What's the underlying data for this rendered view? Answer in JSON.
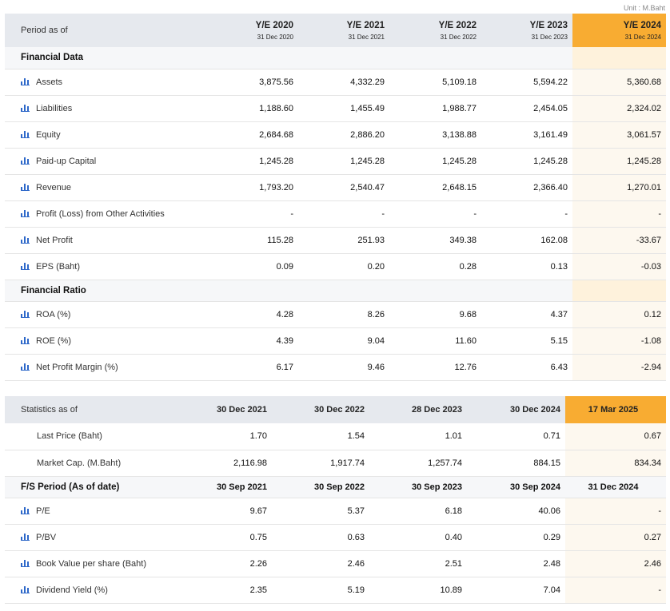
{
  "unit": "Unit : M.Baht",
  "table1": {
    "header_label": "Period as of",
    "columns": [
      {
        "year": "Y/E 2020",
        "date": "31 Dec 2020"
      },
      {
        "year": "Y/E 2021",
        "date": "31 Dec 2021"
      },
      {
        "year": "Y/E 2022",
        "date": "31 Dec 2022"
      },
      {
        "year": "Y/E 2023",
        "date": "31 Dec 2023"
      },
      {
        "year": "Y/E 2024",
        "date": "31 Dec 2024"
      }
    ],
    "sections": [
      {
        "title": "Financial Data",
        "rows": [
          {
            "label": "Assets",
            "values": [
              "3,875.56",
              "4,332.29",
              "5,109.18",
              "5,594.22",
              "5,360.68"
            ]
          },
          {
            "label": "Liabilities",
            "values": [
              "1,188.60",
              "1,455.49",
              "1,988.77",
              "2,454.05",
              "2,324.02"
            ]
          },
          {
            "label": "Equity",
            "values": [
              "2,684.68",
              "2,886.20",
              "3,138.88",
              "3,161.49",
              "3,061.57"
            ]
          },
          {
            "label": "Paid-up Capital",
            "values": [
              "1,245.28",
              "1,245.28",
              "1,245.28",
              "1,245.28",
              "1,245.28"
            ]
          },
          {
            "label": "Revenue",
            "values": [
              "1,793.20",
              "2,540.47",
              "2,648.15",
              "2,366.40",
              "1,270.01"
            ]
          },
          {
            "label": "Profit (Loss) from Other Activities",
            "values": [
              "-",
              "-",
              "-",
              "-",
              "-"
            ]
          },
          {
            "label": "Net Profit",
            "values": [
              "115.28",
              "251.93",
              "349.38",
              "162.08",
              "-33.67"
            ]
          },
          {
            "label": "EPS (Baht)",
            "values": [
              "0.09",
              "0.20",
              "0.28",
              "0.13",
              "-0.03"
            ]
          }
        ]
      },
      {
        "title": "Financial Ratio",
        "rows": [
          {
            "label": "ROA (%)",
            "values": [
              "4.28",
              "8.26",
              "9.68",
              "4.37",
              "0.12"
            ]
          },
          {
            "label": "ROE (%)",
            "values": [
              "4.39",
              "9.04",
              "11.60",
              "5.15",
              "-1.08"
            ]
          },
          {
            "label": "Net Profit Margin (%)",
            "values": [
              "6.17",
              "9.46",
              "12.76",
              "6.43",
              "-2.94"
            ]
          }
        ]
      }
    ]
  },
  "table2": {
    "header_label": "Statistics as of",
    "columns": [
      "30 Dec 2021",
      "30 Dec 2022",
      "28 Dec 2023",
      "30 Dec 2024",
      "17 Mar 2025"
    ],
    "price_rows": [
      {
        "label": "Last Price (Baht)",
        "values": [
          "1.70",
          "1.54",
          "1.01",
          "0.71",
          "0.67"
        ]
      },
      {
        "label": "Market Cap. (M.Baht)",
        "values": [
          "2,116.98",
          "1,917.74",
          "1,257.74",
          "884.15",
          "834.34"
        ]
      }
    ],
    "fs_period": {
      "label": "F/S Period (As of date)",
      "values": [
        "30 Sep 2021",
        "30 Sep 2022",
        "30 Sep 2023",
        "30 Sep 2024",
        "31 Dec 2024"
      ]
    },
    "ratio_rows": [
      {
        "label": "P/E",
        "values": [
          "9.67",
          "5.37",
          "6.18",
          "40.06",
          "-"
        ]
      },
      {
        "label": "P/BV",
        "values": [
          "0.75",
          "0.63",
          "0.40",
          "0.29",
          "0.27"
        ]
      },
      {
        "label": "Book Value per share (Baht)",
        "values": [
          "2.26",
          "2.46",
          "2.51",
          "2.48",
          "2.46"
        ]
      },
      {
        "label": "Dividend Yield (%)",
        "values": [
          "2.35",
          "5.19",
          "10.89",
          "7.04",
          "-"
        ]
      }
    ]
  },
  "colors": {
    "accent": "#f8ac32",
    "highlight_bg": "#fef2dc",
    "header_bg": "#e6e9ee",
    "icon": "#2e68c9"
  },
  "icons": {
    "row_chart": "bar-chart-icon"
  }
}
